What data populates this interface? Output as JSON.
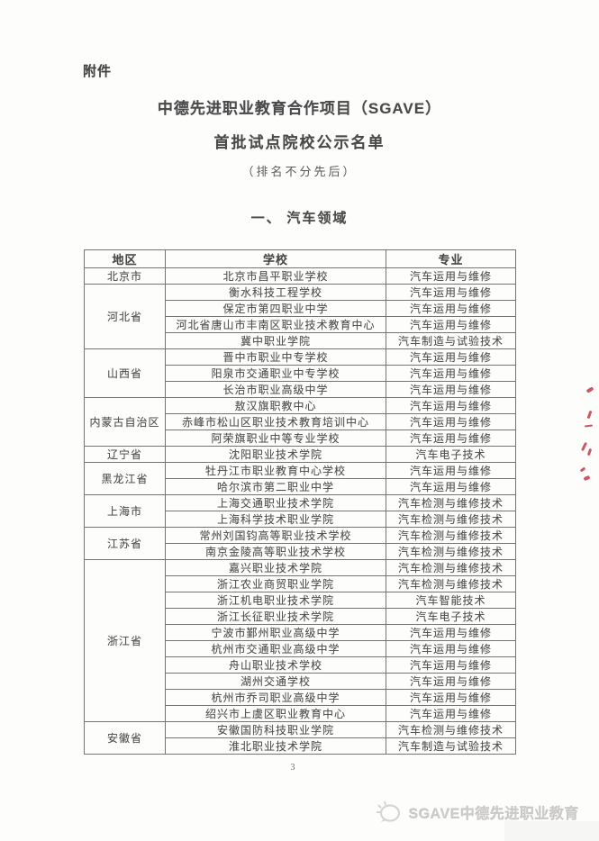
{
  "page": {
    "attachment_label": "附件",
    "title_line1": "中德先进职业教育合作项目（SGAVE）",
    "title_line2": "首批试点院校公示名单",
    "note": "（排名不分先后）",
    "section_heading": "一、 汽车领域",
    "page_number": "3"
  },
  "table": {
    "headers": [
      "地区",
      "学校",
      "专业"
    ],
    "regions": [
      {
        "name": "北京市",
        "schools": [
          [
            "北京市昌平职业学校",
            "汽车运用与维修"
          ]
        ]
      },
      {
        "name": "河北省",
        "schools": [
          [
            "衡水科技工程学校",
            "汽车运用与维修"
          ],
          [
            "保定市第四职业中学",
            "汽车运用与维修"
          ],
          [
            "河北省唐山市丰南区职业技术教育中心",
            "汽车运用与维修"
          ],
          [
            "冀中职业学院",
            "汽车制造与试验技术"
          ]
        ]
      },
      {
        "name": "山西省",
        "schools": [
          [
            "晋中市职业中专学校",
            "汽车运用与维修"
          ],
          [
            "阳泉市交通职业中专学校",
            "汽车运用与维修"
          ],
          [
            "长治市职业高级中学",
            "汽车运用与维修"
          ]
        ]
      },
      {
        "name": "内蒙古自治区",
        "schools": [
          [
            "敖汉旗职教中心",
            "汽车运用与维修"
          ],
          [
            "赤峰市松山区职业技术教育培训中心",
            "汽车运用与维修"
          ],
          [
            "阿荣旗职业中等专业学校",
            "汽车运用与维修"
          ]
        ]
      },
      {
        "name": "辽宁省",
        "schools": [
          [
            "沈阳职业技术学院",
            "汽车电子技术"
          ]
        ]
      },
      {
        "name": "黑龙江省",
        "schools": [
          [
            "牡丹江市职业教育中心学校",
            "汽车运用与维修"
          ],
          [
            "哈尔滨市第二职业中学",
            "汽车运用与维修"
          ]
        ]
      },
      {
        "name": "上海市",
        "schools": [
          [
            "上海交通职业技术学院",
            "汽车检测与维修技术"
          ],
          [
            "上海科学技术职业学院",
            "汽车检测与维修技术"
          ]
        ]
      },
      {
        "name": "江苏省",
        "schools": [
          [
            "常州刘国钧高等职业技术学校",
            "汽车检测与维修技术"
          ],
          [
            "南京金陵高等职业技术学校",
            "汽车检测与维修技术"
          ]
        ]
      },
      {
        "name": "浙江省",
        "schools": [
          [
            "嘉兴职业技术学院",
            "汽车检测与维修技术"
          ],
          [
            "浙江农业商贸职业学院",
            "汽车检测与维修技术"
          ],
          [
            "浙江机电职业技术学院",
            "汽车智能技术"
          ],
          [
            "浙江长征职业技术学院",
            "汽车电子技术"
          ],
          [
            "宁波市鄞州职业高级中学",
            "汽车运用与维修"
          ],
          [
            "杭州市交通职业高级中学",
            "汽车运用与维修"
          ],
          [
            "舟山职业技术学校",
            "汽车运用与维修"
          ],
          [
            "湖州交通学校",
            "汽车运用与维修"
          ],
          [
            "杭州市乔司职业高级中学",
            "汽车运用与维修"
          ],
          [
            "绍兴市上虞区职业教育中心",
            "汽车运用与维修"
          ]
        ]
      },
      {
        "name": "安徽省",
        "schools": [
          [
            "安徽国防科技职业学院",
            "汽车检测与维修技术"
          ],
          [
            "淮北职业技术学院",
            "汽车制造与试验技术"
          ]
        ]
      }
    ]
  },
  "footer": {
    "brand_text": "SGAVE中德先进职业教育",
    "logo_icon": "wechat-brand-icon"
  },
  "colors": {
    "body_text": "#4e4e4e",
    "table_border": "#757575",
    "red_ink": "#c63a4a",
    "footer_text": "#cccbc9"
  }
}
